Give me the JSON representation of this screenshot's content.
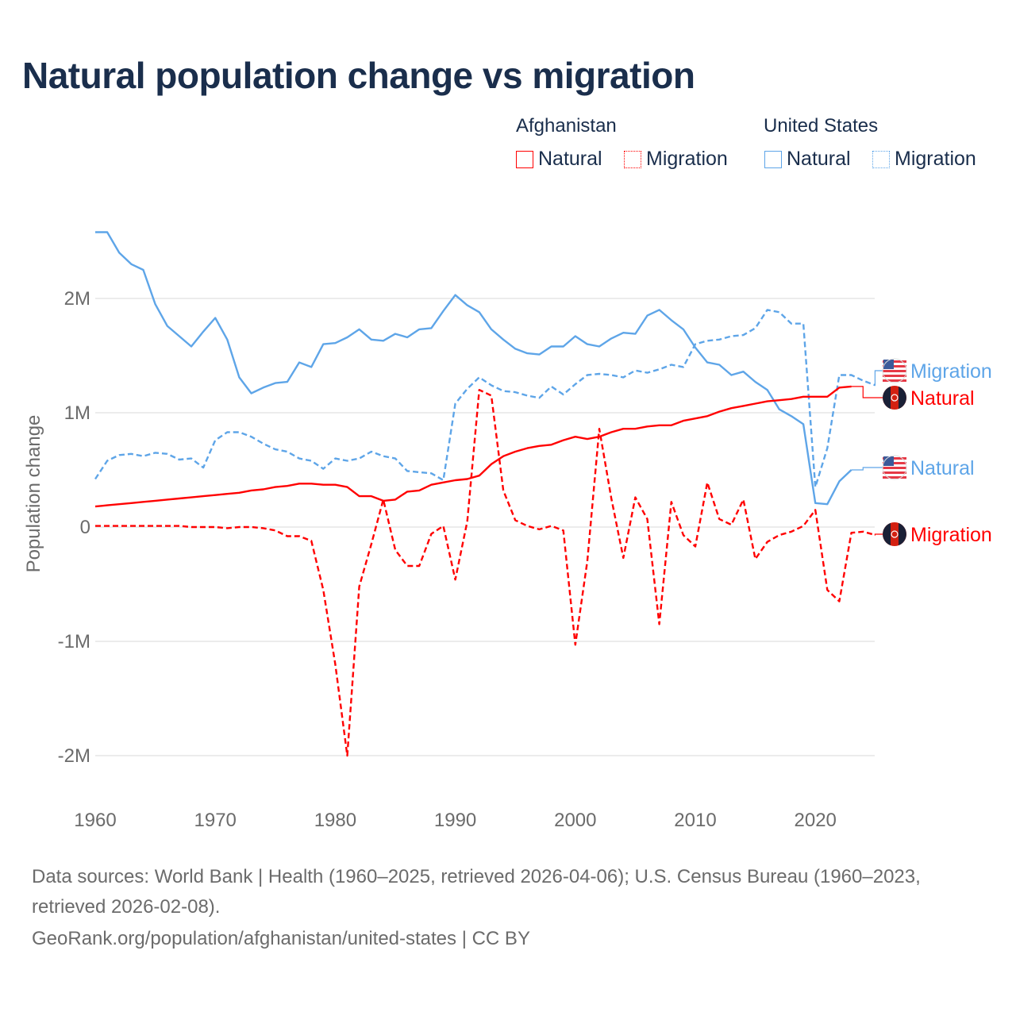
{
  "title": "Natural population change vs migration",
  "legend": {
    "groups": [
      {
        "name": "Afghanistan",
        "color": "#ff0000",
        "items": [
          "Natural",
          "Migration"
        ]
      },
      {
        "name": "United States",
        "color": "#5ea5e8",
        "items": [
          "Natural",
          "Migration"
        ]
      }
    ]
  },
  "end_labels": {
    "us_migration": "Migration",
    "afg_natural": "Natural",
    "us_natural": "Natural",
    "afg_migration": "Migration"
  },
  "footer": {
    "line1": "Data sources: World Bank | Health (1960–2025, retrieved 2026-04-06); U.S. Census Bureau (1960–2023,",
    "line2": "retrieved 2026-02-08).",
    "line3": "GeoRank.org/population/afghanistan/united-states | CC BY"
  },
  "chart_data": {
    "type": "line",
    "title": "Natural population change vs migration",
    "xlabel": "",
    "ylabel": "Population change",
    "xlim": [
      1960,
      2025
    ],
    "ylim": [
      -2000000,
      2600000
    ],
    "x_ticks": [
      "1960",
      "1970",
      "1980",
      "1990",
      "2000",
      "2010",
      "2020"
    ],
    "y_ticks": [
      {
        "v": 2,
        "label": "2M"
      },
      {
        "v": 1,
        "label": "1M"
      },
      {
        "v": 0,
        "label": "0"
      },
      {
        "v": -1,
        "label": "-1M"
      },
      {
        "v": -2,
        "label": "-2M"
      }
    ],
    "units": "millions",
    "series": [
      {
        "name": "United States Natural",
        "color": "#5ea5e8",
        "dash": false,
        "start": 1960,
        "values": [
          2.58,
          2.58,
          2.4,
          2.3,
          2.25,
          1.95,
          1.76,
          1.67,
          1.58,
          1.71,
          1.83,
          1.64,
          1.31,
          1.17,
          1.22,
          1.26,
          1.27,
          1.44,
          1.4,
          1.6,
          1.61,
          1.66,
          1.73,
          1.64,
          1.63,
          1.69,
          1.66,
          1.73,
          1.74,
          1.89,
          2.03,
          1.94,
          1.88,
          1.73,
          1.64,
          1.56,
          1.52,
          1.51,
          1.58,
          1.58,
          1.67,
          1.6,
          1.58,
          1.65,
          1.7,
          1.69,
          1.85,
          1.9,
          1.81,
          1.73,
          1.57,
          1.44,
          1.42,
          1.33,
          1.36,
          1.27,
          1.2,
          1.03,
          0.97,
          0.9,
          0.21,
          0.2,
          0.4,
          0.5
        ]
      },
      {
        "name": "United States Migration",
        "color": "#5ea5e8",
        "dash": true,
        "start": 1960,
        "values": [
          0.42,
          0.58,
          0.63,
          0.64,
          0.62,
          0.65,
          0.64,
          0.59,
          0.6,
          0.52,
          0.76,
          0.83,
          0.83,
          0.79,
          0.73,
          0.68,
          0.66,
          0.6,
          0.58,
          0.51,
          0.6,
          0.58,
          0.6,
          0.66,
          0.62,
          0.6,
          0.49,
          0.48,
          0.47,
          0.41,
          1.08,
          1.21,
          1.31,
          1.24,
          1.19,
          1.18,
          1.15,
          1.13,
          1.23,
          1.16,
          1.25,
          1.33,
          1.34,
          1.33,
          1.31,
          1.37,
          1.35,
          1.38,
          1.42,
          1.4,
          1.6,
          1.63,
          1.64,
          1.67,
          1.68,
          1.74,
          1.9,
          1.88,
          1.78,
          1.78,
          0.35,
          0.69,
          1.33,
          1.33,
          1.28,
          1.24
        ]
      },
      {
        "name": "Afghanistan Natural",
        "color": "#ff0000",
        "dash": false,
        "start": 1960,
        "values": [
          0.18,
          0.19,
          0.2,
          0.21,
          0.22,
          0.23,
          0.24,
          0.25,
          0.26,
          0.27,
          0.28,
          0.29,
          0.3,
          0.32,
          0.33,
          0.35,
          0.36,
          0.38,
          0.38,
          0.37,
          0.37,
          0.35,
          0.27,
          0.27,
          0.23,
          0.24,
          0.31,
          0.32,
          0.37,
          0.39,
          0.41,
          0.42,
          0.45,
          0.55,
          0.62,
          0.66,
          0.69,
          0.71,
          0.72,
          0.76,
          0.79,
          0.77,
          0.79,
          0.83,
          0.86,
          0.86,
          0.88,
          0.89,
          0.89,
          0.93,
          0.95,
          0.97,
          1.01,
          1.04,
          1.06,
          1.08,
          1.1,
          1.11,
          1.12,
          1.14,
          1.14,
          1.14,
          1.22,
          1.23
        ]
      },
      {
        "name": "Afghanistan Migration",
        "color": "#ff0000",
        "dash": true,
        "start": 1960,
        "values": [
          0.01,
          0.01,
          0.01,
          0.01,
          0.01,
          0.01,
          0.01,
          0.01,
          0.0,
          0.0,
          0.0,
          -0.01,
          0.0,
          0.0,
          -0.01,
          -0.03,
          -0.08,
          -0.08,
          -0.12,
          -0.55,
          -1.2,
          -2.0,
          -0.52,
          -0.15,
          0.24,
          -0.2,
          -0.34,
          -0.34,
          -0.06,
          0.01,
          -0.46,
          0.05,
          1.2,
          1.15,
          0.32,
          0.06,
          0.01,
          -0.02,
          0.01,
          -0.03,
          -1.03,
          -0.3,
          0.86,
          0.25,
          -0.27,
          0.26,
          0.07,
          -0.85,
          0.22,
          -0.07,
          -0.17,
          0.39,
          0.07,
          0.02,
          0.24,
          -0.28,
          -0.13,
          -0.07,
          -0.04,
          0.01,
          0.15,
          -0.55,
          -0.65,
          -0.05,
          -0.04,
          -0.07
        ]
      }
    ]
  }
}
